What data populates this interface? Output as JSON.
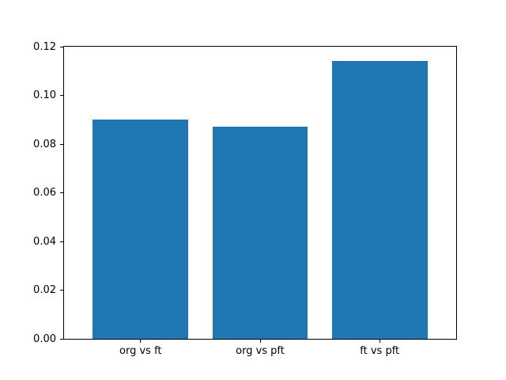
{
  "chart_data": {
    "type": "bar",
    "categories": [
      "org vs ft",
      "org vs pft",
      "ft vs pft"
    ],
    "values": [
      0.09,
      0.087,
      0.114
    ],
    "title": "",
    "xlabel": "",
    "ylabel": "",
    "ylim": [
      0,
      0.12
    ],
    "yticks": [
      0.0,
      0.02,
      0.04,
      0.06,
      0.08,
      0.1,
      0.12
    ],
    "ytick_labels": [
      "0.00",
      "0.02",
      "0.04",
      "0.06",
      "0.08",
      "0.10",
      "0.12"
    ],
    "bar_color": "#1f77b4",
    "grid": false,
    "legend_position": "none"
  },
  "colors": {
    "background": "#ffffff",
    "spine": "#000000",
    "tick_text": "#000000"
  }
}
